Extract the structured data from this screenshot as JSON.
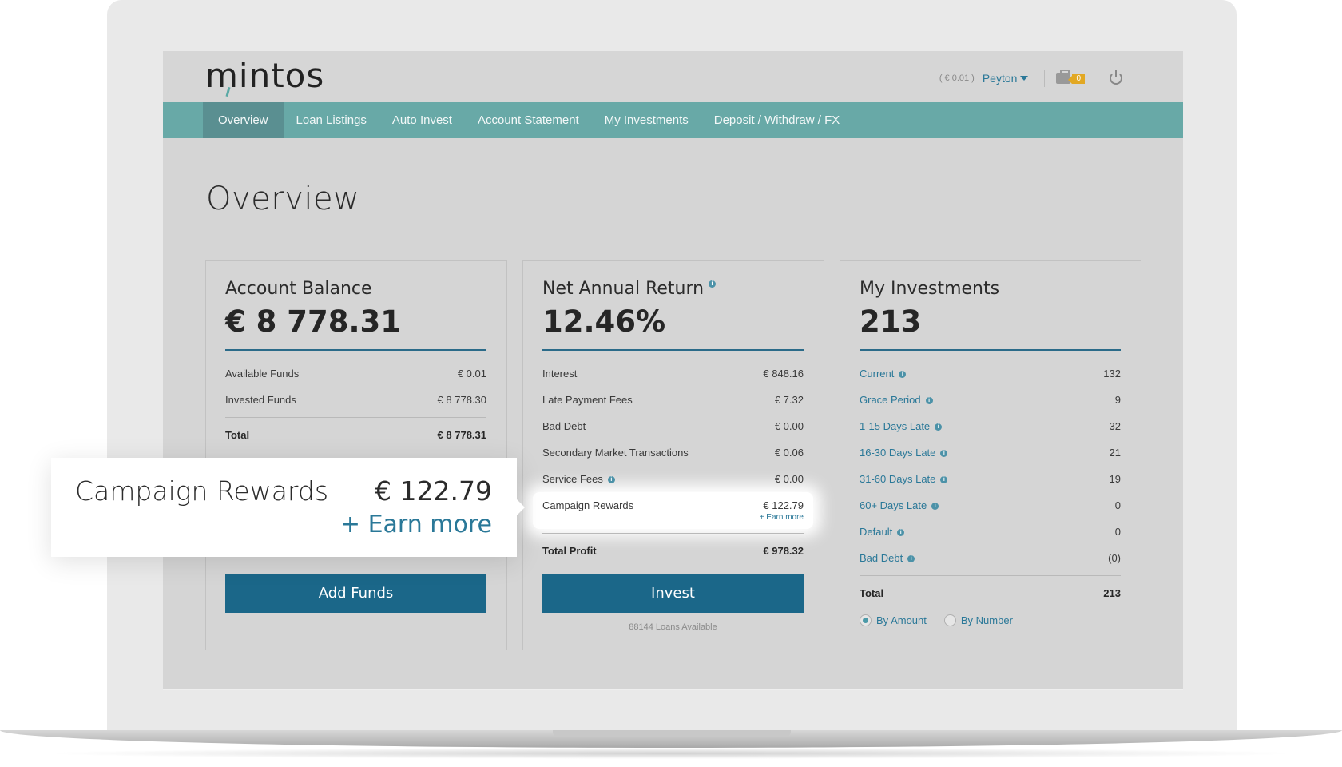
{
  "header": {
    "logo": "mintos",
    "balance": "( € 0.01 )",
    "user": "Peyton",
    "notifications": "0",
    "icons": [
      "briefcase-icon",
      "power-icon",
      "chevron-down-icon"
    ]
  },
  "nav": {
    "items": [
      {
        "label": "Overview",
        "active": true
      },
      {
        "label": "Loan Listings"
      },
      {
        "label": "Auto Invest"
      },
      {
        "label": "Account Statement"
      },
      {
        "label": "My Investments"
      },
      {
        "label": "Deposit / Withdraw / FX"
      }
    ]
  },
  "page": {
    "title": "Overview"
  },
  "account_balance": {
    "title": "Account Balance",
    "amount": "€ 8 778.31",
    "rows": [
      {
        "label": "Available Funds",
        "value": "€ 0.01"
      },
      {
        "label": "Invested Funds",
        "value": "€ 8 778.30"
      }
    ],
    "total": {
      "label": "Total",
      "value": "€ 8 778.31"
    },
    "button": "Add Funds"
  },
  "net_annual_return": {
    "title": "Net Annual Return",
    "amount": "12.46%",
    "rows": [
      {
        "label": "Interest",
        "value": "€ 848.16"
      },
      {
        "label": "Late Payment Fees",
        "value": "€ 7.32"
      },
      {
        "label": "Bad Debt",
        "value": "€ 0.00"
      },
      {
        "label": "Secondary Market Transactions",
        "value": "€ 0.06"
      },
      {
        "label": "Service Fees",
        "value": "€ 0.00"
      }
    ],
    "campaign": {
      "label": "Campaign Rewards",
      "value": "€ 122.79",
      "earn": "+ Earn more"
    },
    "total": {
      "label": "Total Profit",
      "value": "€ 978.32"
    },
    "button": "Invest",
    "note": "88144 Loans Available"
  },
  "my_investments": {
    "title": "My Investments",
    "amount": "213",
    "rows": [
      {
        "label": "Current",
        "value": "132"
      },
      {
        "label": "Grace Period",
        "value": "9"
      },
      {
        "label": "1-15 Days Late",
        "value": "32"
      },
      {
        "label": "16-30 Days Late",
        "value": "21"
      },
      {
        "label": "31-60 Days Late",
        "value": "19"
      },
      {
        "label": "60+ Days Late",
        "value": "0"
      },
      {
        "label": "Default",
        "value": "0"
      },
      {
        "label": "Bad Debt",
        "value": "(0)"
      }
    ],
    "total": {
      "label": "Total",
      "value": "213"
    },
    "radios": [
      {
        "label": "By Amount",
        "selected": true
      },
      {
        "label": "By Number",
        "selected": false
      }
    ]
  },
  "callout": {
    "label": "Campaign Rewards",
    "value": "€ 122.79",
    "earn": "+ Earn more"
  },
  "colors": {
    "nav": "#68a9a7",
    "nav_active": "#5a8f91",
    "button": "#1b6789",
    "link": "#2a7898",
    "badge": "#e2a823"
  }
}
